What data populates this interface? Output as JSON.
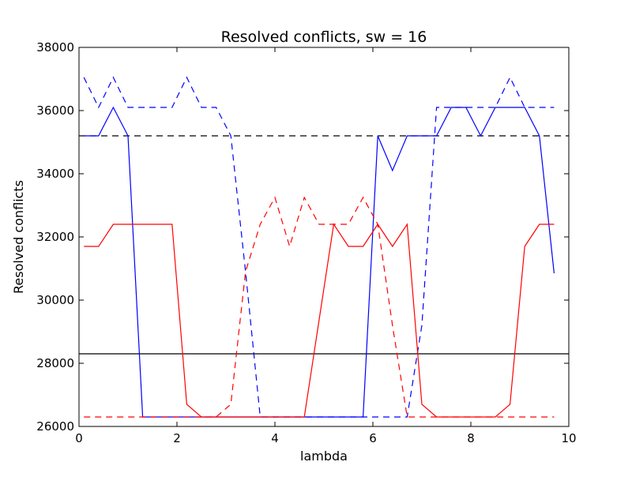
{
  "chart_data": {
    "type": "line",
    "title": "Resolved conflicts, sw = 16",
    "xlabel": "lambda",
    "ylabel": "Resolved conflicts",
    "xlim": [
      0,
      10
    ],
    "ylim": [
      26000,
      38000
    ],
    "xticks": [
      0,
      2,
      4,
      6,
      8,
      10
    ],
    "yticks": [
      26000,
      28000,
      30000,
      32000,
      34000,
      36000,
      38000
    ],
    "x": [
      0.1,
      0.4,
      0.7,
      1.0,
      1.3,
      1.6,
      1.9,
      2.2,
      2.5,
      2.8,
      3.1,
      3.4,
      3.7,
      4.0,
      4.3,
      4.6,
      4.9,
      5.2,
      5.5,
      5.8,
      6.1,
      6.4,
      6.7,
      7.0,
      7.3,
      7.6,
      7.9,
      8.2,
      8.5,
      8.8,
      9.1,
      9.4,
      9.7
    ],
    "series": [
      {
        "color": "#0000ff",
        "dash": "solid",
        "values": [
          35200,
          35200,
          36100,
          35200,
          26300,
          26300,
          26300,
          26300,
          26300,
          26300,
          26300,
          26300,
          26300,
          26300,
          26300,
          26300,
          26300,
          26300,
          26300,
          26300,
          35200,
          34100,
          35200,
          35200,
          35200,
          36100,
          36100,
          35200,
          36100,
          36100,
          36100,
          35200,
          30850
        ]
      },
      {
        "color": "#0000ff",
        "dash": "dashed",
        "values": [
          37050,
          36100,
          37050,
          36100,
          36100,
          36100,
          36100,
          37050,
          36100,
          36100,
          35200,
          30900,
          26300,
          26300,
          26300,
          26300,
          26300,
          26300,
          26300,
          26300,
          26300,
          26300,
          26300,
          29200,
          36100,
          36100,
          36100,
          36100,
          36100,
          37050,
          36100,
          36100,
          36100
        ]
      },
      {
        "color": "#ff0000",
        "dash": "solid",
        "values": [
          31700,
          31700,
          32400,
          32400,
          32400,
          32400,
          32400,
          26700,
          26300,
          26300,
          26300,
          26300,
          26300,
          26300,
          26300,
          26300,
          29350,
          32400,
          31700,
          31700,
          32400,
          31700,
          32400,
          26700,
          26300,
          26300,
          26300,
          26300,
          26300,
          26700,
          31700,
          32400,
          32400
        ]
      },
      {
        "color": "#ff0000",
        "dash": "dashed",
        "values": [
          26300,
          26300,
          26300,
          26300,
          26300,
          26300,
          26300,
          26300,
          26300,
          26300,
          26700,
          30900,
          32400,
          33250,
          31700,
          33250,
          32400,
          32400,
          32400,
          33250,
          32400,
          29200,
          26300,
          26300,
          26300,
          26300,
          26300,
          26300,
          26300,
          26300,
          26300,
          26300,
          26300
        ]
      }
    ],
    "reference_lines": [
      {
        "y": 35200,
        "color": "#000000",
        "dash": "dashed"
      },
      {
        "y": 28300,
        "color": "#000000",
        "dash": "solid"
      }
    ],
    "grid": false,
    "legend": "none"
  }
}
